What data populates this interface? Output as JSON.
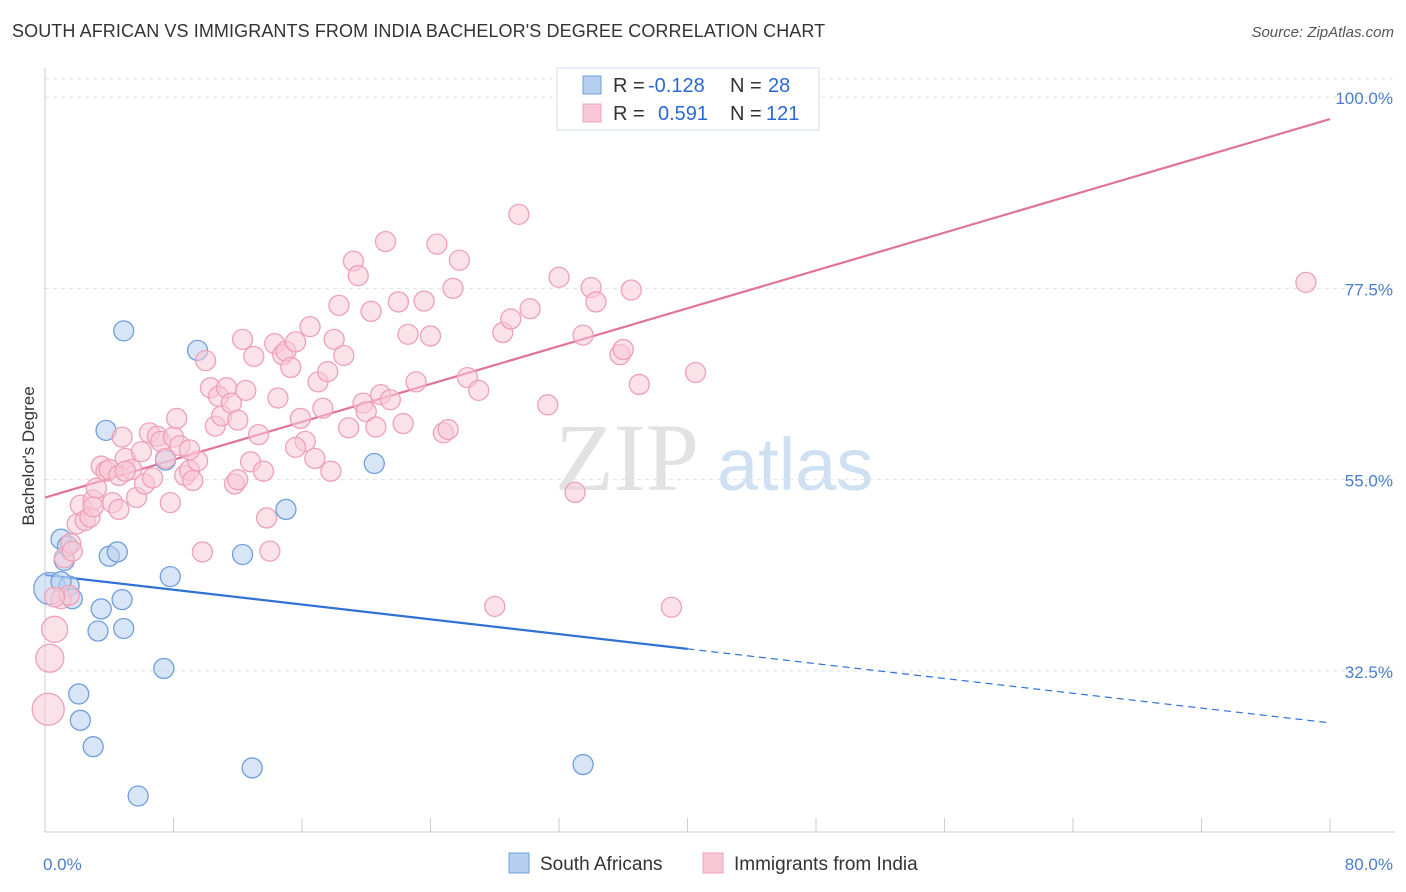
{
  "header": {
    "title": "SOUTH AFRICAN VS IMMIGRANTS FROM INDIA BACHELOR'S DEGREE CORRELATION CHART",
    "source": "Source: ZipAtlas.com"
  },
  "watermark": {
    "zip": "ZIP",
    "atlas": "atlas"
  },
  "stats_legend": {
    "rows": [
      {
        "r_label": "R =",
        "r_value": "-0.128",
        "n_label": "N =",
        "n_value": "28",
        "color": "#6fa0e0"
      },
      {
        "r_label": "R =",
        "r_value": "0.591",
        "n_label": "N =",
        "n_value": "121",
        "color": "#f0a0b8"
      }
    ]
  },
  "colors": {
    "blue_fill": "#b8d0f0",
    "blue_stroke": "#6f9fdc",
    "blue_line": "#2f72d4",
    "pink_fill": "#f8c8d6",
    "pink_stroke": "#eea0b8",
    "pink_line": "#e0739a",
    "axis_label": "#4a7ec9",
    "grid": "#dde3ea"
  },
  "chart_data": {
    "type": "scatter",
    "title": "SOUTH AFRICAN VS IMMIGRANTS FROM INDIA BACHELOR'S DEGREE CORRELATION CHART",
    "xlabel": "",
    "ylabel": "Bachelor's Degree",
    "xlim": [
      0,
      80
    ],
    "ylim": [
      12,
      102
    ],
    "x_ticks": [
      0,
      80
    ],
    "x_tick_labels": [
      "0.0%",
      "80.0%"
    ],
    "y_ticks": [
      32.5,
      55.0,
      77.5,
      100.0
    ],
    "y_tick_labels": [
      "32.5%",
      "55.0%",
      "77.5%",
      "100.0%"
    ],
    "grid": "horizontal dashed",
    "legend": [
      "South Africans",
      "Immigrants from India"
    ],
    "series": [
      {
        "name": "South Africans",
        "color": "#6f9fdc",
        "trend": {
          "x": [
            0,
            40,
            80
          ],
          "y": [
            43.8,
            35.1,
            26.4
          ],
          "solid_to_x": 40
        },
        "points": [
          [
            0.3,
            42.2,
            16
          ],
          [
            1.0,
            48.0,
            10
          ],
          [
            1.2,
            45.5,
            10
          ],
          [
            1.5,
            42.5,
            10
          ],
          [
            1.4,
            47.2,
            10
          ],
          [
            1.7,
            41.0,
            10
          ],
          [
            3.3,
            37.2,
            10
          ],
          [
            2.1,
            29.8,
            10
          ],
          [
            2.2,
            26.7,
            10
          ],
          [
            3.0,
            23.6,
            10
          ],
          [
            3.5,
            39.8,
            10
          ],
          [
            3.8,
            60.8,
            10
          ],
          [
            4.0,
            46.0,
            10
          ],
          [
            4.5,
            46.5,
            10
          ],
          [
            4.8,
            40.9,
            10
          ],
          [
            4.9,
            37.5,
            10
          ],
          [
            4.9,
            72.5,
            10
          ],
          [
            7.4,
            32.8,
            10
          ],
          [
            7.5,
            57.3,
            10
          ],
          [
            7.8,
            43.6,
            10
          ],
          [
            9.5,
            70.2,
            10
          ],
          [
            12.3,
            46.2,
            10
          ],
          [
            12.9,
            21.1,
            10
          ],
          [
            15.0,
            51.5,
            10
          ],
          [
            20.5,
            56.9,
            10
          ],
          [
            33.5,
            21.5,
            10
          ],
          [
            5.8,
            17.8,
            10
          ],
          [
            1.0,
            43.0,
            10
          ]
        ]
      },
      {
        "name": "Immigrants from India",
        "color": "#eea0b8",
        "trend": {
          "x": [
            0,
            80
          ],
          "y": [
            52.9,
            97.4
          ]
        },
        "points": [
          [
            0.2,
            28.0,
            16
          ],
          [
            0.3,
            34.0,
            14
          ],
          [
            0.6,
            37.4,
            13
          ],
          [
            1.0,
            41.0,
            10
          ],
          [
            1.2,
            45.8,
            10
          ],
          [
            1.5,
            41.4,
            10
          ],
          [
            1.6,
            47.5,
            10
          ],
          [
            1.7,
            46.6,
            10
          ],
          [
            2.0,
            49.8,
            10
          ],
          [
            2.2,
            52.0,
            10
          ],
          [
            2.5,
            50.2,
            10
          ],
          [
            2.8,
            50.6,
            10
          ],
          [
            3.0,
            52.6,
            10
          ],
          [
            3.2,
            54.0,
            10
          ],
          [
            3.5,
            56.6,
            10
          ],
          [
            3.8,
            56.0,
            10
          ],
          [
            4.0,
            56.2,
            10
          ],
          [
            4.2,
            52.3,
            10
          ],
          [
            4.6,
            55.5,
            10
          ],
          [
            4.6,
            51.5,
            10
          ],
          [
            4.8,
            60.0,
            10
          ],
          [
            5.0,
            57.5,
            10
          ],
          [
            5.4,
            56.2,
            10
          ],
          [
            5.7,
            52.9,
            10
          ],
          [
            6.0,
            58.3,
            10
          ],
          [
            6.2,
            54.5,
            10
          ],
          [
            6.5,
            60.5,
            10
          ],
          [
            6.7,
            55.2,
            10
          ],
          [
            7.0,
            60.1,
            10
          ],
          [
            7.2,
            59.5,
            10
          ],
          [
            7.5,
            57.5,
            10
          ],
          [
            7.8,
            52.3,
            10
          ],
          [
            8.0,
            60.0,
            10
          ],
          [
            8.2,
            62.2,
            10
          ],
          [
            8.4,
            59.0,
            10
          ],
          [
            8.7,
            55.5,
            10
          ],
          [
            9.0,
            56.1,
            10
          ],
          [
            9.2,
            54.9,
            10
          ],
          [
            9.5,
            57.2,
            10
          ],
          [
            9.8,
            46.5,
            10
          ],
          [
            10.0,
            69.0,
            10
          ],
          [
            10.3,
            65.8,
            10
          ],
          [
            10.6,
            61.3,
            10
          ],
          [
            10.8,
            64.8,
            10
          ],
          [
            11.0,
            62.5,
            10
          ],
          [
            11.3,
            65.8,
            10
          ],
          [
            11.6,
            64.0,
            10
          ],
          [
            11.8,
            54.5,
            10
          ],
          [
            12.0,
            62.0,
            10
          ],
          [
            12.3,
            71.5,
            10
          ],
          [
            12.5,
            65.5,
            10
          ],
          [
            12.8,
            57.1,
            10
          ],
          [
            13.0,
            69.5,
            10
          ],
          [
            13.3,
            60.3,
            10
          ],
          [
            13.6,
            56.0,
            10
          ],
          [
            13.8,
            50.5,
            10
          ],
          [
            14.0,
            46.6,
            10
          ],
          [
            14.3,
            71.0,
            10
          ],
          [
            14.5,
            64.6,
            10
          ],
          [
            14.8,
            69.7,
            10
          ],
          [
            15.0,
            70.1,
            10
          ],
          [
            15.3,
            68.2,
            10
          ],
          [
            15.6,
            71.2,
            10
          ],
          [
            15.9,
            62.2,
            10
          ],
          [
            16.2,
            59.5,
            10
          ],
          [
            16.5,
            73.0,
            10
          ],
          [
            16.8,
            57.5,
            10
          ],
          [
            17.0,
            66.5,
            10
          ],
          [
            17.3,
            63.4,
            10
          ],
          [
            17.6,
            67.7,
            10
          ],
          [
            17.8,
            56.0,
            10
          ],
          [
            18.0,
            71.5,
            10
          ],
          [
            18.3,
            75.5,
            10
          ],
          [
            18.6,
            69.6,
            10
          ],
          [
            18.9,
            61.1,
            10
          ],
          [
            19.2,
            80.7,
            10
          ],
          [
            19.5,
            79.0,
            10
          ],
          [
            19.8,
            64.0,
            10
          ],
          [
            20.0,
            63.0,
            10
          ],
          [
            20.3,
            74.8,
            10
          ],
          [
            20.6,
            61.2,
            10
          ],
          [
            20.9,
            65.0,
            10
          ],
          [
            21.2,
            83.0,
            10
          ],
          [
            21.5,
            64.4,
            10
          ],
          [
            22.0,
            75.9,
            10
          ],
          [
            22.3,
            61.6,
            10
          ],
          [
            22.6,
            72.1,
            10
          ],
          [
            23.1,
            66.5,
            10
          ],
          [
            23.6,
            76.0,
            10
          ],
          [
            24.0,
            71.9,
            10
          ],
          [
            24.4,
            82.7,
            10
          ],
          [
            24.8,
            60.5,
            10
          ],
          [
            25.1,
            60.9,
            10
          ],
          [
            25.4,
            77.5,
            10
          ],
          [
            25.8,
            80.8,
            10
          ],
          [
            26.3,
            67.0,
            10
          ],
          [
            27.0,
            65.5,
            10
          ],
          [
            28.0,
            40.1,
            10
          ],
          [
            28.5,
            72.3,
            10
          ],
          [
            29.0,
            73.9,
            10
          ],
          [
            29.5,
            86.2,
            10
          ],
          [
            30.2,
            75.1,
            10
          ],
          [
            31.3,
            63.8,
            10
          ],
          [
            32.0,
            78.8,
            10
          ],
          [
            33.0,
            53.5,
            10
          ],
          [
            33.5,
            72.0,
            10
          ],
          [
            34.0,
            77.6,
            10
          ],
          [
            34.3,
            75.9,
            10
          ],
          [
            35.8,
            69.7,
            10
          ],
          [
            36.0,
            70.3,
            10
          ],
          [
            36.5,
            77.3,
            10
          ],
          [
            37.0,
            66.2,
            10
          ],
          [
            39.0,
            40.0,
            10
          ],
          [
            40.5,
            67.6,
            10
          ],
          [
            78.5,
            78.2,
            10
          ],
          [
            0.6,
            41.2,
            10
          ],
          [
            3.0,
            51.8,
            10
          ],
          [
            9.0,
            58.5,
            10
          ],
          [
            5.0,
            56.0,
            10
          ],
          [
            12.0,
            55.0,
            10
          ],
          [
            15.6,
            58.8,
            10
          ]
        ]
      }
    ]
  }
}
